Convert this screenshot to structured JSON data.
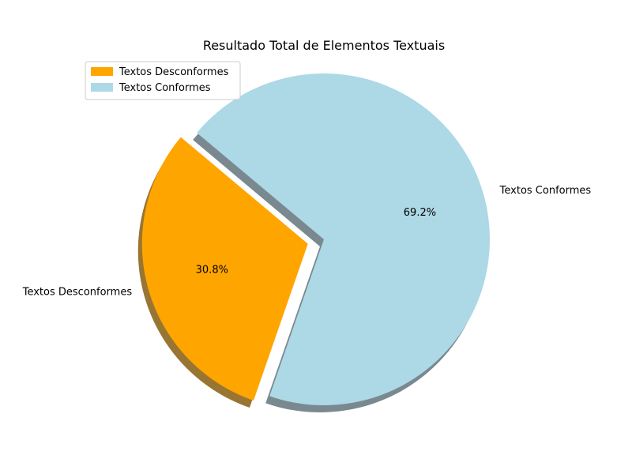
{
  "chart_data": {
    "type": "pie",
    "title": "Resultado Total de Elementos Textuais",
    "slices": [
      {
        "name": "Textos Desconformes",
        "value": 30.8,
        "pct_label": "30.8%",
        "color": "#FFA500",
        "exploded": true
      },
      {
        "name": "Textos Conformes",
        "value": 69.2,
        "pct_label": "69.2%",
        "color": "#ADD8E6",
        "exploded": false
      }
    ],
    "start_angle_deg": 140,
    "shadow": true,
    "legend": {
      "position": "upper-left",
      "entries": [
        "Textos Desconformes",
        "Textos Conformes"
      ]
    }
  }
}
